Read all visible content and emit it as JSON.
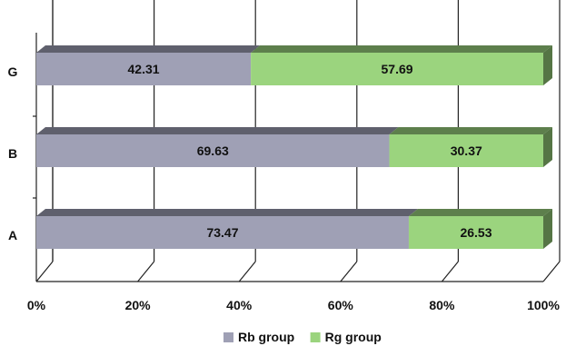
{
  "chart_data": {
    "type": "bar",
    "orientation": "horizontal",
    "stacked": "100%",
    "three_d": true,
    "categories": [
      "G",
      "B",
      "A"
    ],
    "series": [
      {
        "name": "Rb group",
        "values": [
          42.31,
          69.63,
          73.47
        ],
        "color": "#9fa0b5"
      },
      {
        "name": "Rg group",
        "values": [
          57.69,
          30.37,
          26.53
        ],
        "color": "#9bd47e"
      }
    ],
    "x_ticks": [
      "0%",
      "20%",
      "40%",
      "60%",
      "80%",
      "100%"
    ],
    "xlim": [
      0,
      100
    ],
    "grid": true,
    "legend": "bottom"
  }
}
